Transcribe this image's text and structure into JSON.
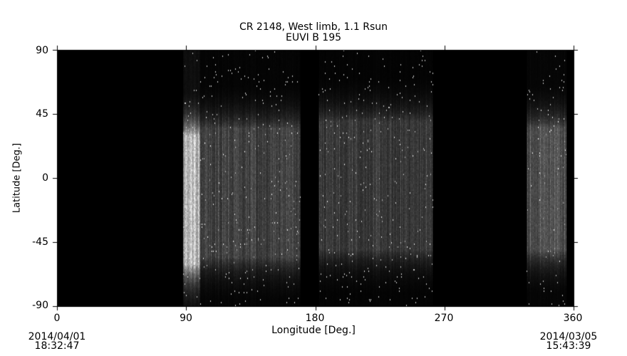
{
  "chart_data": {
    "type": "heatmap",
    "title": "CR 2148, West limb, 1.1 Rsun",
    "subtitle": "EUVI B 195",
    "xlabel": "Longitude [Deg.]",
    "ylabel": "Latitude [Deg.]",
    "xlim": [
      0,
      360
    ],
    "ylim": [
      -90,
      90
    ],
    "xticks": [
      "0",
      "90",
      "180",
      "270",
      "360"
    ],
    "yticks": [
      "90",
      "45",
      "0",
      "-45",
      "-90"
    ],
    "colormap": "grayscale",
    "background": "#000000",
    "bands": [
      {
        "lon": [
          88,
          100
        ],
        "lat": [
          -60,
          30
        ],
        "intensity": 0.75
      },
      {
        "lon": [
          100,
          170
        ],
        "lat": [
          -55,
          35
        ],
        "intensity": 0.4
      },
      {
        "lon": [
          182,
          262
        ],
        "lat": [
          -50,
          40
        ],
        "intensity": 0.35
      },
      {
        "lon": [
          327,
          355
        ],
        "lat": [
          -50,
          35
        ],
        "intensity": 0.5
      }
    ],
    "start_date": "2014/04/01",
    "start_time": "18:32:47",
    "end_date": "2014/03/05",
    "end_time": "15:43:39"
  }
}
